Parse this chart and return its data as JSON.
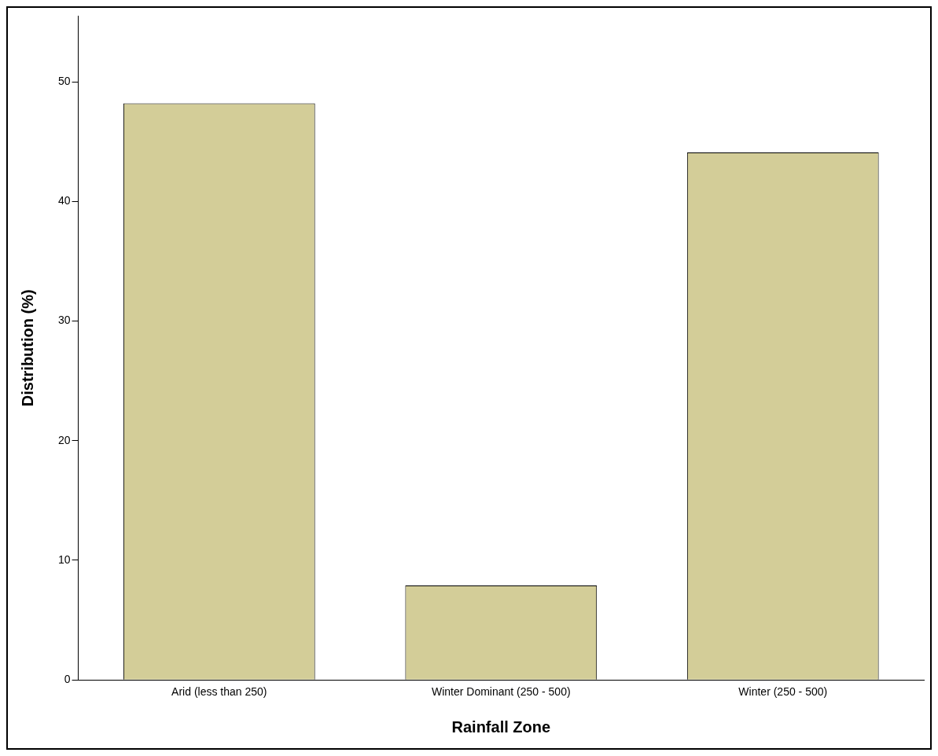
{
  "chart_data": {
    "type": "bar",
    "xlabel": "Rainfall Zone",
    "ylabel": "Distribution (%)",
    "categories": [
      "Arid (less than 250)",
      "Winter Dominant (250 - 500)",
      "Winter (250 - 500)"
    ],
    "values": [
      48.2,
      7.9,
      44.1
    ],
    "color": "#d3cd98",
    "ylim": [
      0,
      55.5
    ],
    "yticks": [
      0,
      10,
      20,
      30,
      40,
      50
    ],
    "grid": false,
    "legend": false
  }
}
